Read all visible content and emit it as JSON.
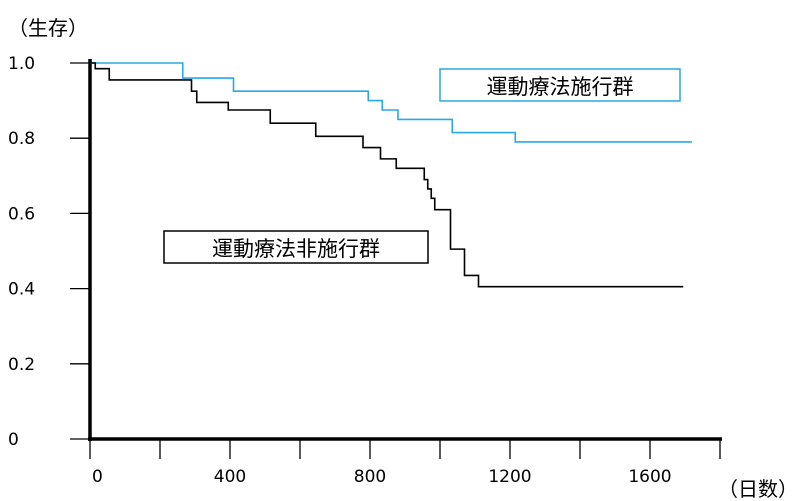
{
  "chart_data": {
    "type": "line",
    "step": true,
    "ylabel": "（生存）",
    "xlabel": "（日数）",
    "xlim": [
      0,
      1800
    ],
    "ylim": [
      0,
      1.0
    ],
    "x_ticks": [
      0,
      400,
      800,
      1200,
      1600
    ],
    "x_minor_ticks": [
      0,
      200,
      400,
      600,
      800,
      1000,
      1200,
      1400,
      1600,
      1800
    ],
    "x_tick_labels": [
      "0",
      "400",
      "800",
      "1200",
      "1600"
    ],
    "y_ticks": [
      0,
      0.2,
      0.4,
      0.6,
      0.8,
      1.0
    ],
    "y_tick_labels": [
      "0",
      "0.2",
      "0.4",
      "0.6",
      "0.8",
      "1.0"
    ],
    "grid": false,
    "series": [
      {
        "name": "運動療法施行群",
        "color": "#29a9e0",
        "points": [
          [
            0,
            1.0
          ],
          [
            265,
            0.96
          ],
          [
            410,
            0.925
          ],
          [
            795,
            0.9
          ],
          [
            835,
            0.875
          ],
          [
            880,
            0.85
          ],
          [
            1035,
            0.815
          ],
          [
            1215,
            0.79
          ],
          [
            1720,
            0.79
          ]
        ]
      },
      {
        "name": "運動療法非施行群",
        "color": "#000000",
        "points": [
          [
            0,
            1.0
          ],
          [
            15,
            0.985
          ],
          [
            55,
            0.955
          ],
          [
            290,
            0.925
          ],
          [
            305,
            0.895
          ],
          [
            395,
            0.875
          ],
          [
            515,
            0.84
          ],
          [
            645,
            0.805
          ],
          [
            780,
            0.775
          ],
          [
            830,
            0.745
          ],
          [
            875,
            0.72
          ],
          [
            955,
            0.69
          ],
          [
            965,
            0.665
          ],
          [
            975,
            0.64
          ],
          [
            985,
            0.61
          ],
          [
            1030,
            0.505
          ],
          [
            1070,
            0.435
          ],
          [
            1110,
            0.405
          ],
          [
            1695,
            0.405
          ]
        ]
      }
    ]
  },
  "legend": {
    "exercise_label": "運動療法施行群",
    "non_exercise_label": "運動療法非施行群"
  }
}
